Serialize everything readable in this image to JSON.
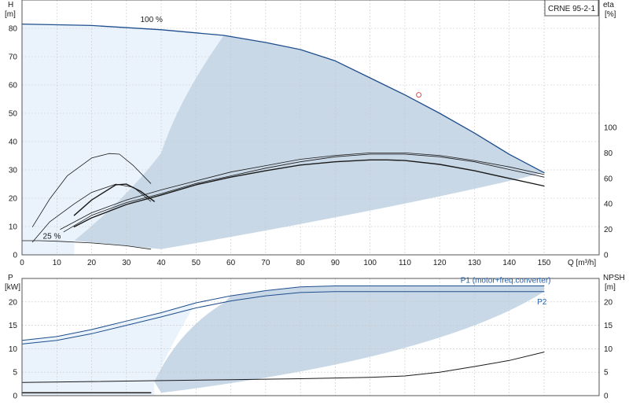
{
  "title": "CRNE 95-2-1",
  "chart_data": [
    {
      "id": "top",
      "type": "line",
      "xlabel": "Q [m³/h]",
      "xlim": [
        0,
        160
      ],
      "xticks": [
        0,
        10,
        20,
        30,
        40,
        50,
        60,
        70,
        80,
        90,
        100,
        110,
        120,
        130,
        140,
        150
      ],
      "left_axis": {
        "label_top": "H",
        "label_bottom": "[m]",
        "ylim": [
          0,
          90
        ],
        "ticks": [
          0,
          10,
          20,
          30,
          40,
          50,
          60,
          70,
          80
        ]
      },
      "right_axis": {
        "label_top": "eta",
        "label_bottom": "[%]",
        "ylim": [
          0,
          200
        ],
        "ticks": [
          0,
          20,
          40,
          60,
          80,
          100
        ]
      },
      "annotations": [
        {
          "text": "100 %",
          "x": 34,
          "y": 83
        },
        {
          "text": "25 %",
          "x": 6,
          "y": 6.5
        }
      ],
      "duty_point": {
        "x": 114,
        "y": 56.5,
        "color": "#e05050"
      },
      "series": [
        {
          "axis": "left",
          "color": "#1f4e8c",
          "width": 1.3,
          "x": [
            0,
            20,
            40,
            58,
            70,
            80,
            90,
            100,
            110,
            120,
            130,
            140,
            150
          ],
          "y": [
            81.5,
            81,
            79.5,
            77.5,
            75,
            72.5,
            68.5,
            62.5,
            56.5,
            50,
            43,
            35.5,
            29
          ]
        },
        {
          "axis": "left",
          "color": "#1a1a1a",
          "width": 0.8,
          "x": [
            0,
            5,
            10,
            20,
            30,
            37
          ],
          "y": [
            5,
            5,
            4.8,
            4.2,
            3.2,
            2
          ]
        },
        {
          "axis": "right",
          "color": "#1a1a1a",
          "width": 0.8,
          "x": [
            12,
            20,
            30,
            40,
            50,
            60,
            70,
            80,
            90,
            100,
            110,
            120,
            130,
            140,
            150
          ],
          "y": [
            18,
            31,
            41,
            48,
            56,
            62,
            68,
            73,
            77,
            79,
            79,
            77,
            73,
            67,
            61
          ]
        },
        {
          "axis": "right",
          "color": "#1a1a1a",
          "width": 0.8,
          "x": [
            11,
            20,
            30,
            40,
            50,
            60,
            70,
            80,
            90,
            100,
            110,
            120,
            130,
            140,
            150
          ],
          "y": [
            20,
            33,
            43,
            51,
            58,
            65,
            70,
            75,
            78,
            80,
            80,
            78,
            74,
            69,
            63
          ]
        },
        {
          "axis": "right",
          "color": "#1a1a1a",
          "width": 1.4,
          "x": [
            15,
            20,
            30,
            40,
            50,
            60,
            70,
            80,
            90,
            100,
            105,
            110,
            120,
            130,
            140,
            150
          ],
          "y": [
            22,
            29,
            39.5,
            47,
            55,
            61,
            66,
            70.5,
            73,
            74.5,
            74.5,
            74,
            71,
            66,
            60,
            54
          ]
        },
        {
          "axis": "right",
          "color": "#1a1a1a",
          "width": 0.8,
          "x": [
            3,
            8,
            13,
            20,
            25,
            28,
            32,
            37
          ],
          "y": [
            22,
            44,
            62,
            76,
            79.5,
            79,
            70,
            56
          ]
        },
        {
          "axis": "right",
          "color": "#1a1a1a",
          "width": 0.8,
          "x": [
            3,
            8,
            15,
            20,
            27,
            32,
            37
          ],
          "y": [
            10,
            26,
            40,
            49,
            55.5,
            53,
            42
          ]
        },
        {
          "axis": "right",
          "color": "#1a1a1a",
          "width": 1.4,
          "x": [
            15,
            20,
            27,
            30,
            34,
            38
          ],
          "y": [
            31,
            43,
            55,
            55.5,
            50,
            42
          ]
        }
      ]
    },
    {
      "id": "bottom",
      "type": "line",
      "xlim": [
        0,
        160
      ],
      "left_axis": {
        "label_top": "P",
        "label_bottom": "[kW]",
        "ylim": [
          0,
          25
        ],
        "ticks": [
          0,
          5,
          10,
          15,
          20
        ]
      },
      "right_axis": {
        "label_top": "NPSH",
        "label_bottom": "[m]",
        "ylim": [
          0,
          25
        ],
        "ticks": [
          0,
          5,
          10,
          15,
          20
        ]
      },
      "annotations": [
        {
          "text": "P1 (motor+freq.converter)",
          "x": 126,
          "y": 24.6
        },
        {
          "text": "P2",
          "x": 148,
          "y": 20
        }
      ],
      "series": [
        {
          "name": "P1 (motor+freq.converter)",
          "axis": "left",
          "color": "#1f4e8c",
          "width": 1,
          "x": [
            0,
            10,
            20,
            30,
            40,
            50,
            60,
            70,
            80,
            90,
            100,
            110,
            120,
            130,
            140,
            150
          ],
          "y": [
            11.8,
            12.6,
            14.1,
            15.9,
            17.7,
            19.8,
            21.3,
            22.4,
            23.2,
            23.4,
            23.4,
            23.4,
            23.4,
            23.4,
            23.4,
            23.4
          ]
        },
        {
          "name": "P2",
          "axis": "left",
          "color": "#1f4e8c",
          "width": 1,
          "x": [
            0,
            10,
            20,
            30,
            40,
            50,
            60,
            70,
            80,
            90,
            100,
            110,
            120,
            130,
            140,
            150
          ],
          "y": [
            11,
            11.8,
            13.2,
            15,
            16.8,
            18.7,
            20.2,
            21.3,
            22,
            22.2,
            22.2,
            22.2,
            22.2,
            22.2,
            22.2,
            22.2
          ]
        },
        {
          "axis": "right",
          "color": "#1a1a1a",
          "width": 1,
          "x": [
            0,
            20,
            40,
            60,
            80,
            100,
            110,
            120,
            130,
            140,
            150
          ],
          "y": [
            2.8,
            3,
            3.2,
            3.4,
            3.6,
            3.9,
            4.2,
            5,
            6.2,
            7.5,
            9.3
          ]
        },
        {
          "axis": "left",
          "color": "#1a1a1a",
          "width": 1.5,
          "x": [
            0,
            37
          ],
          "y": [
            0.6,
            0.6
          ]
        }
      ]
    }
  ]
}
